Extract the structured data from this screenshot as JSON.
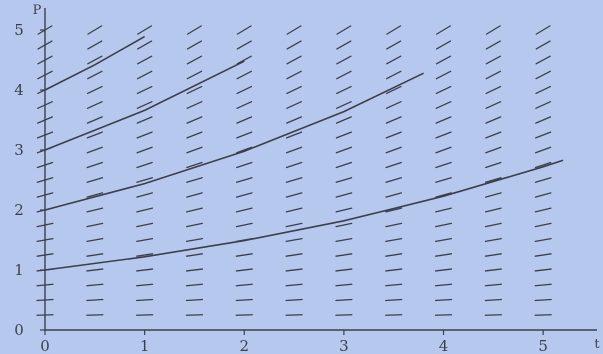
{
  "chart_data": {
    "type": "line",
    "subtype": "direction-field",
    "xlabel": "t",
    "ylabel": "P",
    "xlim": [
      0,
      5.4
    ],
    "ylim": [
      0,
      5.2
    ],
    "x_ticks": [
      "0",
      "1",
      "2",
      "3",
      "4",
      "5"
    ],
    "y_ticks": [
      "0",
      "1",
      "2",
      "3",
      "4",
      "5"
    ],
    "grid": false,
    "legend": "none",
    "slope_field": {
      "equation_slope_factor": 0.2,
      "t_samples": [
        0,
        0.5,
        1,
        1.5,
        2,
        2.5,
        3,
        3.5,
        4,
        4.5,
        5
      ],
      "p_samples": [
        0.25,
        0.5,
        0.75,
        1,
        1.25,
        1.5,
        1.75,
        2,
        2.25,
        2.5,
        2.75,
        3,
        3.25,
        3.5,
        3.75,
        4,
        4.25,
        4.5,
        4.75,
        5
      ]
    },
    "series": [
      {
        "initial_P": 1,
        "x": [
          0,
          1,
          2,
          3,
          4,
          5,
          5.2
        ],
        "y": [
          1,
          1.22,
          1.49,
          1.82,
          2.23,
          2.72,
          2.83
        ]
      },
      {
        "initial_P": 2,
        "x": [
          0,
          1,
          2,
          3,
          3.8
        ],
        "y": [
          2,
          2.44,
          2.98,
          3.64,
          4.28
        ]
      },
      {
        "initial_P": 3,
        "x": [
          0,
          1,
          2
        ],
        "y": [
          3,
          3.66,
          4.48
        ]
      },
      {
        "initial_P": 4,
        "x": [
          0,
          0.5,
          1
        ],
        "y": [
          4,
          4.42,
          4.89
        ]
      }
    ],
    "colors": {
      "background": "#b7c8ef",
      "ink": "#3a3f4c"
    }
  }
}
